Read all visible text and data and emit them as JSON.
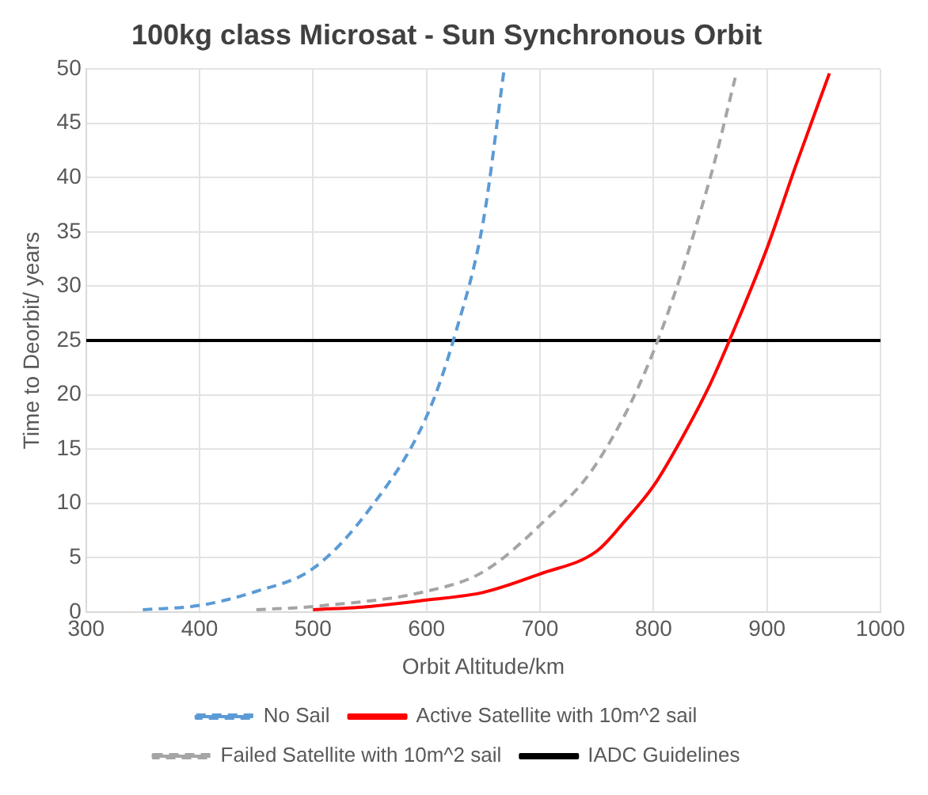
{
  "chart_data": {
    "type": "line",
    "title": "100kg class Microsat - Sun Synchronous Orbit",
    "xlabel": "Orbit Altitude/km",
    "ylabel": "Time to Deorbit/ years",
    "xlim": [
      300,
      1000
    ],
    "xticks": [
      300,
      400,
      500,
      600,
      700,
      800,
      900,
      {
        "value": 1000,
        "label": "1000"
      }
    ],
    "ylim": [
      0,
      50
    ],
    "yticks": [
      0,
      5,
      10,
      15,
      20,
      25,
      30,
      35,
      40,
      45,
      50
    ],
    "grid": true,
    "legend": "bottom",
    "marker": "none",
    "series": [
      {
        "name": "No Sail",
        "color": "#5b9bd5",
        "line_style": "dashed",
        "x": [
          350,
          400,
          450,
          500,
          550,
          600,
          625,
          650,
          668
        ],
        "values": [
          0.2,
          0.6,
          1.9,
          4,
          9.5,
          18,
          25.5,
          36,
          49.7
        ]
      },
      {
        "name": "Active Satellite with 10m^2 sail",
        "color": "#ff0000",
        "line_style": "solid",
        "x": [
          500,
          550,
          600,
          650,
          700,
          750,
          775,
          800,
          825,
          850,
          875,
          900,
          925,
          955
        ],
        "values": [
          0.2,
          0.5,
          1.1,
          1.8,
          3.5,
          5.6,
          8.4,
          11.6,
          16,
          21,
          27,
          33.5,
          41,
          49.6
        ]
      },
      {
        "name": "Failed Satellite with 10m^2 sail",
        "color": "#a5a5a5",
        "line_style": "dashed",
        "x": [
          450,
          500,
          600,
          650,
          700,
          750,
          800,
          850,
          872
        ],
        "values": [
          0.2,
          0.5,
          1.9,
          3.7,
          8,
          13.7,
          24,
          40,
          49.2
        ]
      },
      {
        "name": "IADC Guidelines",
        "color": "#000000",
        "line_style": "solid",
        "x": [
          300,
          1000
        ],
        "values": [
          25,
          25
        ]
      }
    ]
  }
}
